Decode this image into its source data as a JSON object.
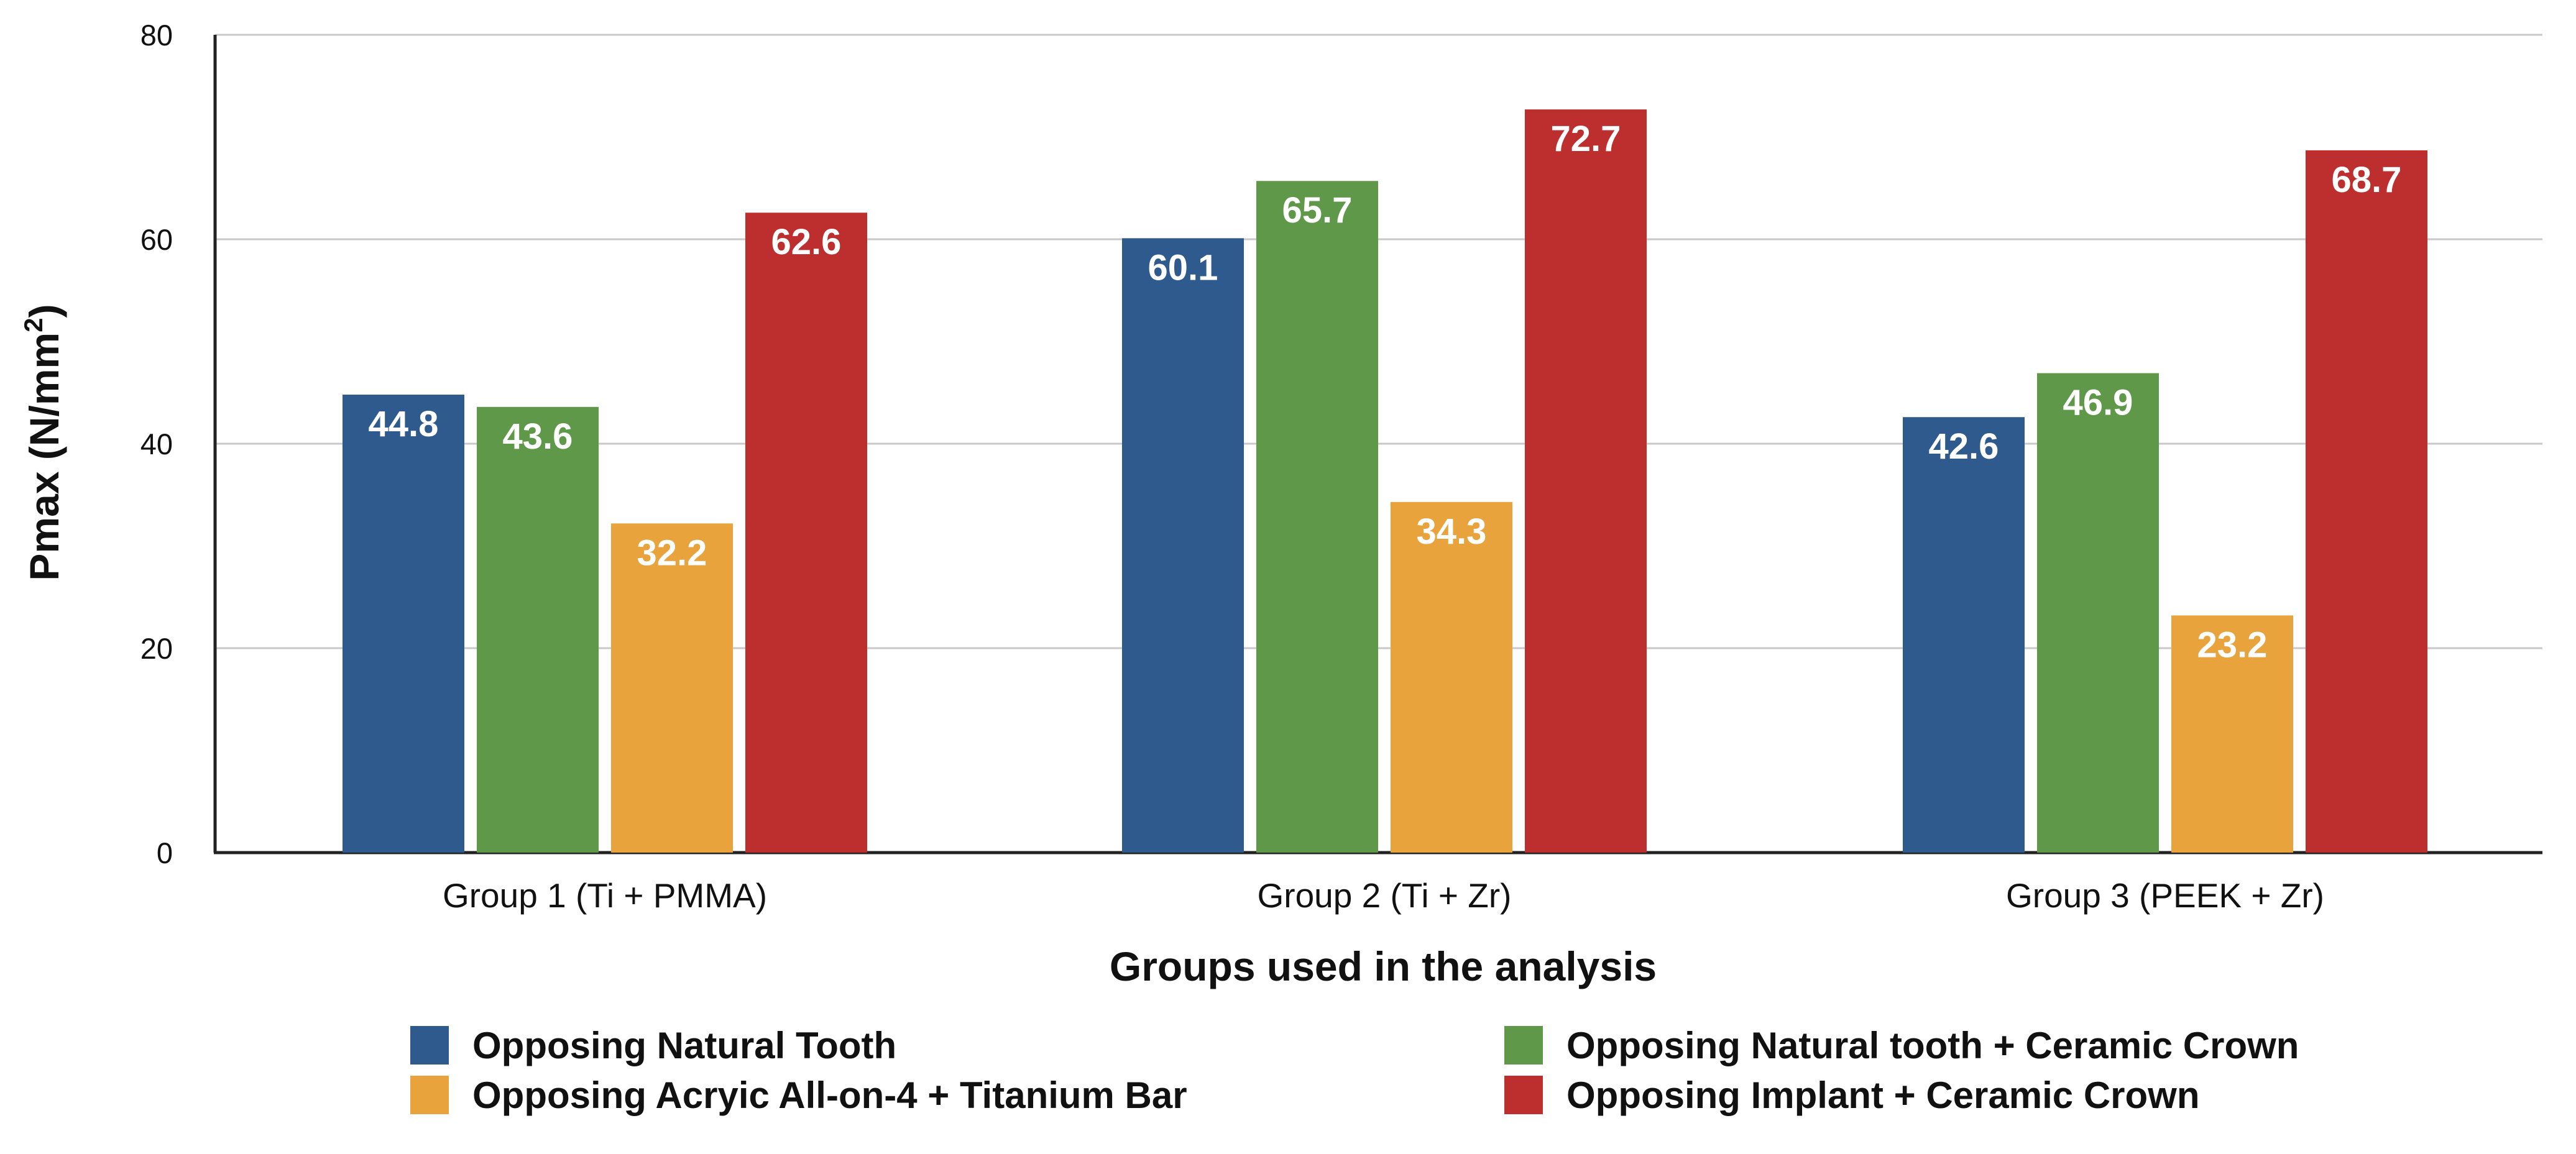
{
  "chart_data": {
    "type": "bar",
    "title": "",
    "xlabel": "Groups used in the analysis",
    "ylabel_main": "Pmax (N/mm",
    "ylabel_sup": "2",
    "ylabel_close": ")",
    "ylim": [
      0,
      80
    ],
    "yticks": [
      0,
      20,
      40,
      60,
      80
    ],
    "grid": true,
    "legend_position": "bottom",
    "categories": [
      "Group 1 (Ti + PMMA)",
      "Group 2 (Ti + Zr)",
      "Group 3 (PEEK + Zr)"
    ],
    "series": [
      {
        "name": "Opposing Natural Tooth",
        "color": "#2e5a8e",
        "values": [
          44.8,
          60.1,
          42.6
        ]
      },
      {
        "name": "Opposing Natural tooth + Ceramic Crown",
        "color": "#5e9848",
        "values": [
          43.6,
          65.7,
          46.9
        ]
      },
      {
        "name": "Opposing Acryic All-on-4 + Titanium Bar",
        "color": "#e8a33c",
        "values": [
          32.2,
          34.3,
          23.2
        ]
      },
      {
        "name": "Opposing Implant + Ceramic Crown",
        "color": "#bd2f2f",
        "values": [
          62.6,
          72.7,
          68.7
        ]
      }
    ]
  }
}
